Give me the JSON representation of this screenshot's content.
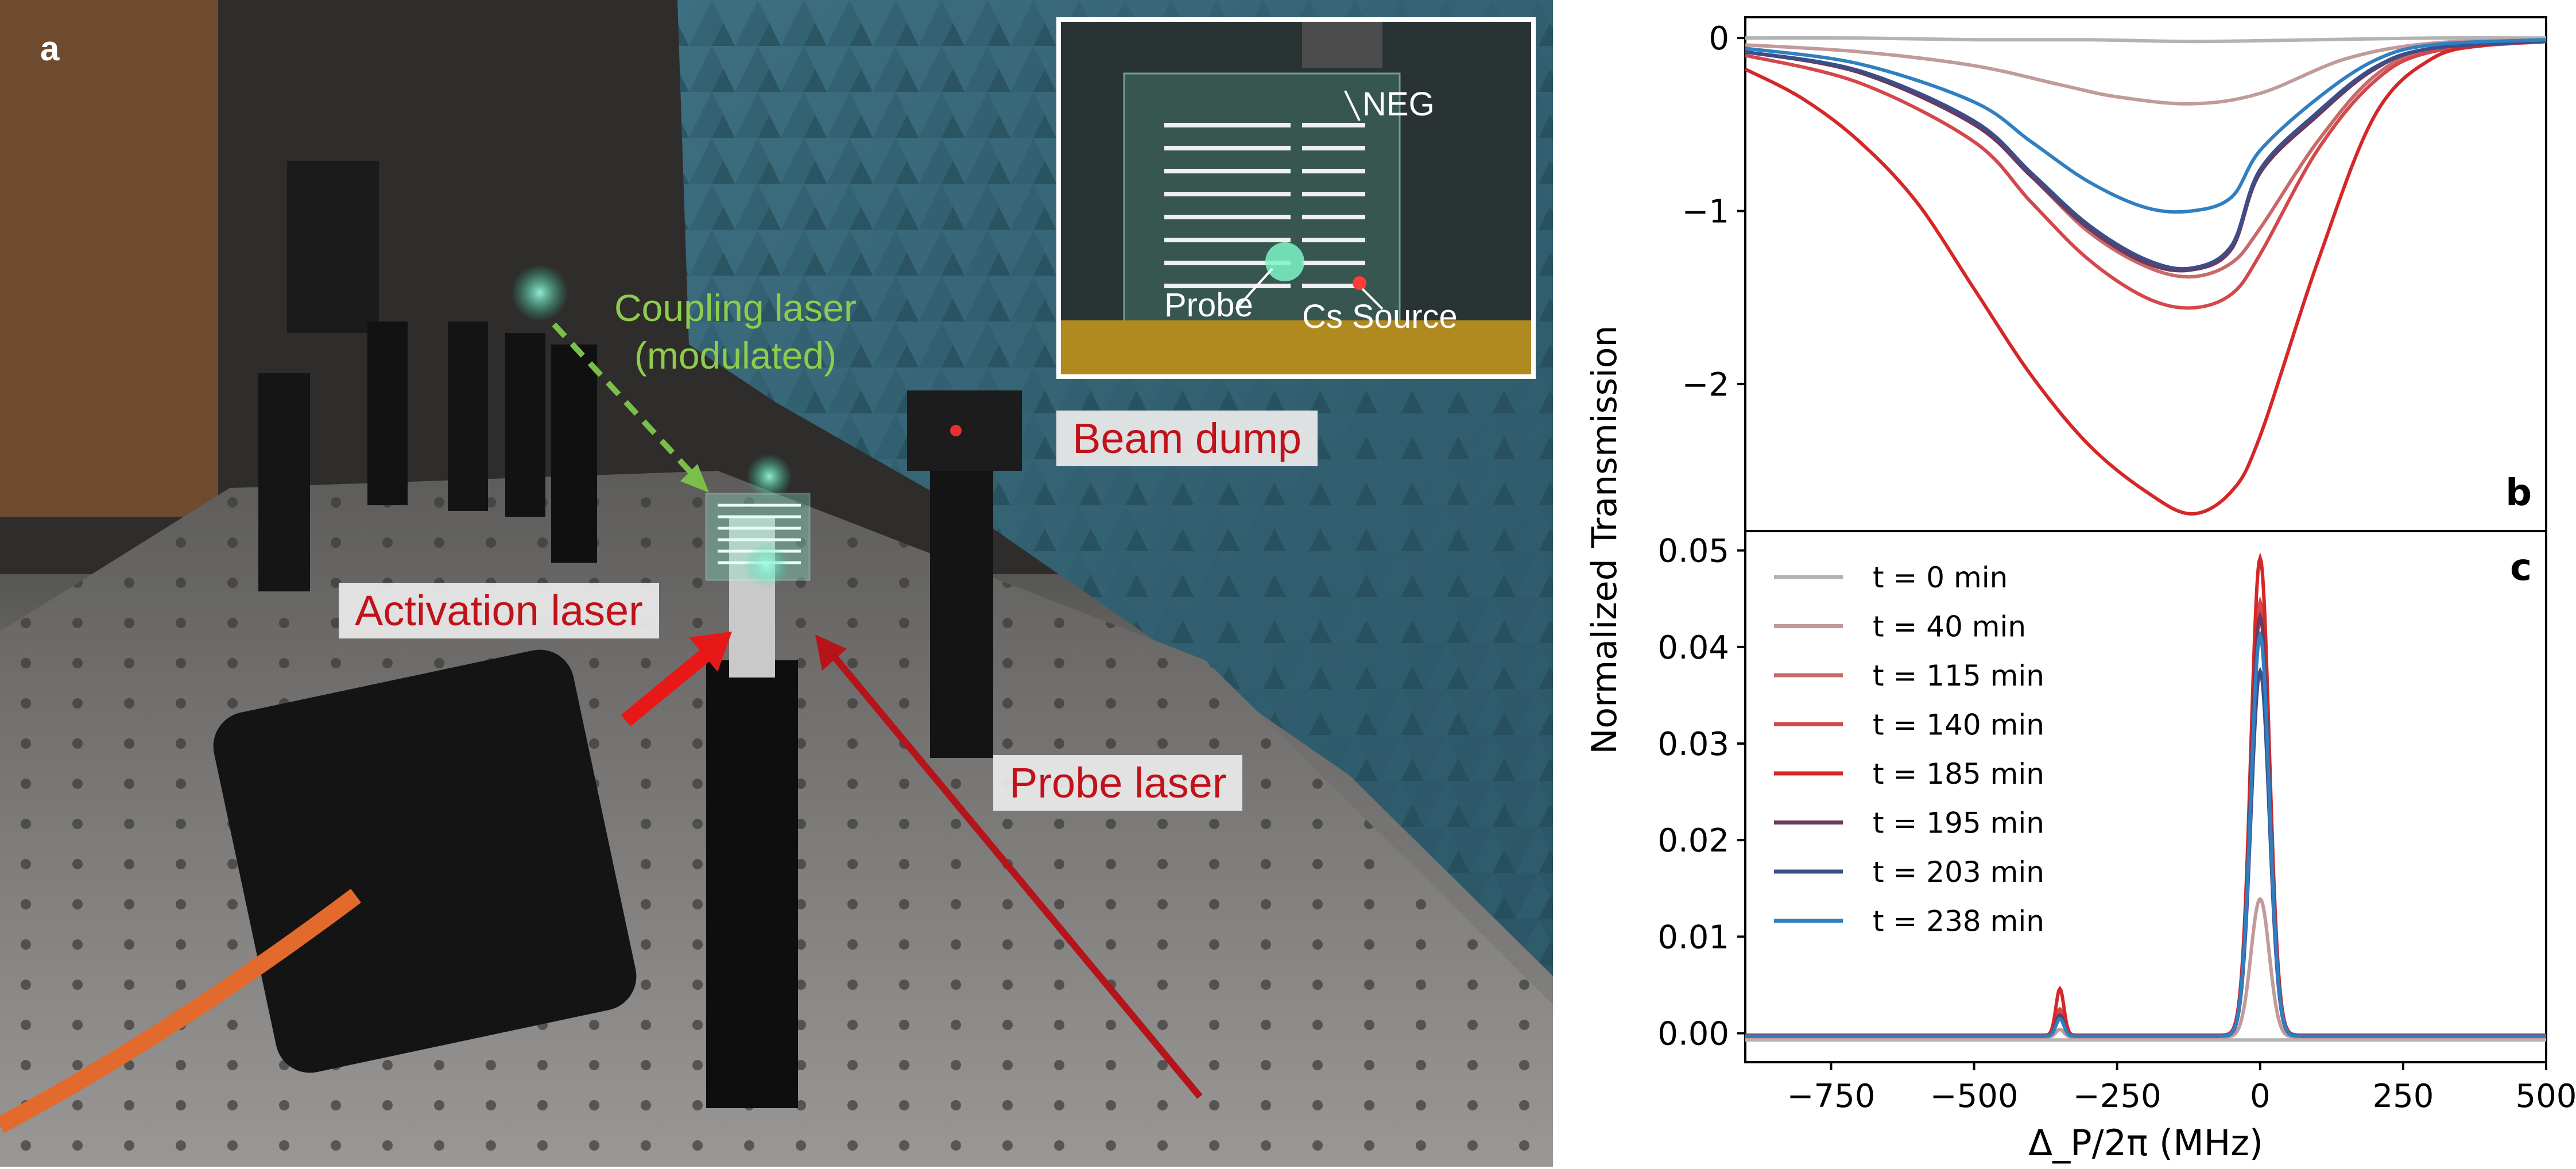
{
  "figure": {
    "panel_labels": {
      "a": "a",
      "b": "b",
      "c": "c"
    }
  },
  "photo": {
    "labels": {
      "coupling_laser": [
        "Coupling laser",
        "(modulated)"
      ],
      "beam_dump": "Beam dump",
      "activation_laser": "Activation laser",
      "probe_laser": "Probe laser"
    },
    "inset": {
      "neg": "NEG",
      "probe": "Probe",
      "cs_source": "Cs Source"
    }
  },
  "colors": {
    "t0": "#b3b3b3",
    "t40": "#c19a9a",
    "t115": "#c86a6a",
    "t140": "#d4474a",
    "t185": "#d62728",
    "t195": "#6b3a5d",
    "t203": "#3a4f8a",
    "t238": "#2f7fc1",
    "green_beam": "#7bbf4a",
    "red_label": "#c0121a",
    "inset_border": "#ffffff"
  },
  "chart_data": [
    {
      "panel": "b",
      "type": "line",
      "ylabel": "Normalized Transmission",
      "xlim": [
        -900,
        500
      ],
      "ylim": [
        -2.85,
        0.12
      ],
      "yticks": [
        0,
        -1,
        -2
      ],
      "ytick_labels": [
        "0",
        "−1",
        "−2"
      ],
      "grid": false,
      "series": [
        {
          "name": "t = 0 min",
          "color": "#b3b3b3",
          "x": [
            -900,
            -700,
            -500,
            -300,
            -120,
            100,
            300,
            500
          ],
          "y": [
            0.0,
            0.0,
            -0.01,
            -0.01,
            -0.02,
            -0.01,
            0.0,
            0.0
          ]
        },
        {
          "name": "t = 40 min",
          "color": "#c19a9a",
          "x": [
            -900,
            -700,
            -500,
            -350,
            -250,
            -120,
            0,
            150,
            300,
            500
          ],
          "y": [
            -0.04,
            -0.08,
            -0.16,
            -0.27,
            -0.34,
            -0.38,
            -0.32,
            -0.12,
            -0.03,
            -0.01
          ]
        },
        {
          "name": "t = 115 min",
          "color": "#c86a6a",
          "x": [
            -900,
            -700,
            -500,
            -400,
            -300,
            -200,
            -120,
            -50,
            0,
            100,
            200,
            300,
            500
          ],
          "y": [
            -0.08,
            -0.2,
            -0.5,
            -0.8,
            -1.12,
            -1.32,
            -1.38,
            -1.3,
            -1.1,
            -0.6,
            -0.22,
            -0.07,
            -0.02
          ]
        },
        {
          "name": "t = 140 min",
          "color": "#d4474a",
          "x": [
            -900,
            -700,
            -500,
            -400,
            -300,
            -200,
            -120,
            -50,
            0,
            100,
            200,
            300,
            500
          ],
          "y": [
            -0.1,
            -0.26,
            -0.6,
            -0.95,
            -1.28,
            -1.5,
            -1.56,
            -1.48,
            -1.25,
            -0.65,
            -0.25,
            -0.08,
            -0.02
          ]
        },
        {
          "name": "t = 185 min",
          "color": "#d62728",
          "x": [
            -900,
            -800,
            -700,
            -600,
            -500,
            -400,
            -300,
            -200,
            -120,
            -50,
            0,
            100,
            200,
            300,
            400,
            500
          ],
          "y": [
            -0.18,
            -0.35,
            -0.6,
            -0.95,
            -1.45,
            -1.95,
            -2.35,
            -2.62,
            -2.75,
            -2.62,
            -2.3,
            -1.3,
            -0.45,
            -0.12,
            -0.04,
            -0.02
          ]
        },
        {
          "name": "t = 195 min",
          "color": "#6b3a5d",
          "x": [
            -900,
            -700,
            -500,
            -400,
            -300,
            -200,
            -120,
            -50,
            0,
            100,
            200,
            300,
            500
          ],
          "y": [
            -0.08,
            -0.2,
            -0.5,
            -0.8,
            -1.1,
            -1.3,
            -1.34,
            -1.22,
            -0.78,
            -0.45,
            -0.18,
            -0.06,
            -0.02
          ]
        },
        {
          "name": "t = 203 min",
          "color": "#3a4f8a",
          "x": [
            -900,
            -700,
            -500,
            -400,
            -300,
            -200,
            -120,
            -50,
            0,
            100,
            200,
            300,
            500
          ],
          "y": [
            -0.08,
            -0.19,
            -0.48,
            -0.78,
            -1.08,
            -1.28,
            -1.33,
            -1.2,
            -0.76,
            -0.43,
            -0.17,
            -0.06,
            -0.02
          ]
        },
        {
          "name": "t = 238 min",
          "color": "#2f7fc1",
          "x": [
            -900,
            -700,
            -500,
            -400,
            -300,
            -200,
            -120,
            -50,
            0,
            100,
            200,
            300,
            500
          ],
          "y": [
            -0.06,
            -0.15,
            -0.37,
            -0.6,
            -0.83,
            -0.98,
            -1.0,
            -0.92,
            -0.65,
            -0.35,
            -0.13,
            -0.04,
            -0.01
          ]
        }
      ]
    },
    {
      "panel": "c",
      "type": "line",
      "xlabel": "Δ_P/2π (MHz)",
      "xlim": [
        -900,
        500
      ],
      "ylim": [
        -0.003,
        0.052
      ],
      "xticks": [
        -750,
        -500,
        -250,
        0,
        250,
        500
      ],
      "xtick_labels": [
        "−750",
        "−500",
        "−250",
        "0",
        "250",
        "500"
      ],
      "yticks": [
        0.0,
        0.01,
        0.02,
        0.03,
        0.04,
        0.05
      ],
      "ytick_labels": [
        "0.00",
        "0.01",
        "0.02",
        "0.03",
        "0.04",
        "0.05"
      ],
      "legend_position": "upper-left",
      "grid": false,
      "peaks": {
        "main_center": 0,
        "main_width": 16,
        "side_center": -350,
        "side_width": 7
      },
      "series": [
        {
          "name": "t = 0 min",
          "color": "#b3b3b3",
          "baseline": -0.0007,
          "main_peak": 0.0,
          "side_peak": 0.0
        },
        {
          "name": "t = 40 min",
          "color": "#c19a9a",
          "baseline": -0.0004,
          "main_peak": 0.0143,
          "side_peak": 0.0008
        },
        {
          "name": "t = 115 min",
          "color": "#c86a6a",
          "baseline": -0.0003,
          "main_peak": 0.0415,
          "side_peak": 0.0025
        },
        {
          "name": "t = 140 min",
          "color": "#d4474a",
          "baseline": -0.0003,
          "main_peak": 0.045,
          "side_peak": 0.0028
        },
        {
          "name": "t = 185 min",
          "color": "#d62728",
          "baseline": -0.0002,
          "main_peak": 0.0494,
          "side_peak": 0.0048
        },
        {
          "name": "t = 195 min",
          "color": "#6b3a5d",
          "baseline": -0.0003,
          "main_peak": 0.0435,
          "side_peak": 0.0022
        },
        {
          "name": "t = 203 min",
          "color": "#3a4f8a",
          "baseline": -0.0003,
          "main_peak": 0.0378,
          "side_peak": 0.0019
        },
        {
          "name": "t = 238 min",
          "color": "#2f7fc1",
          "baseline": -0.0003,
          "main_peak": 0.0415,
          "side_peak": 0.0018
        }
      ]
    }
  ]
}
